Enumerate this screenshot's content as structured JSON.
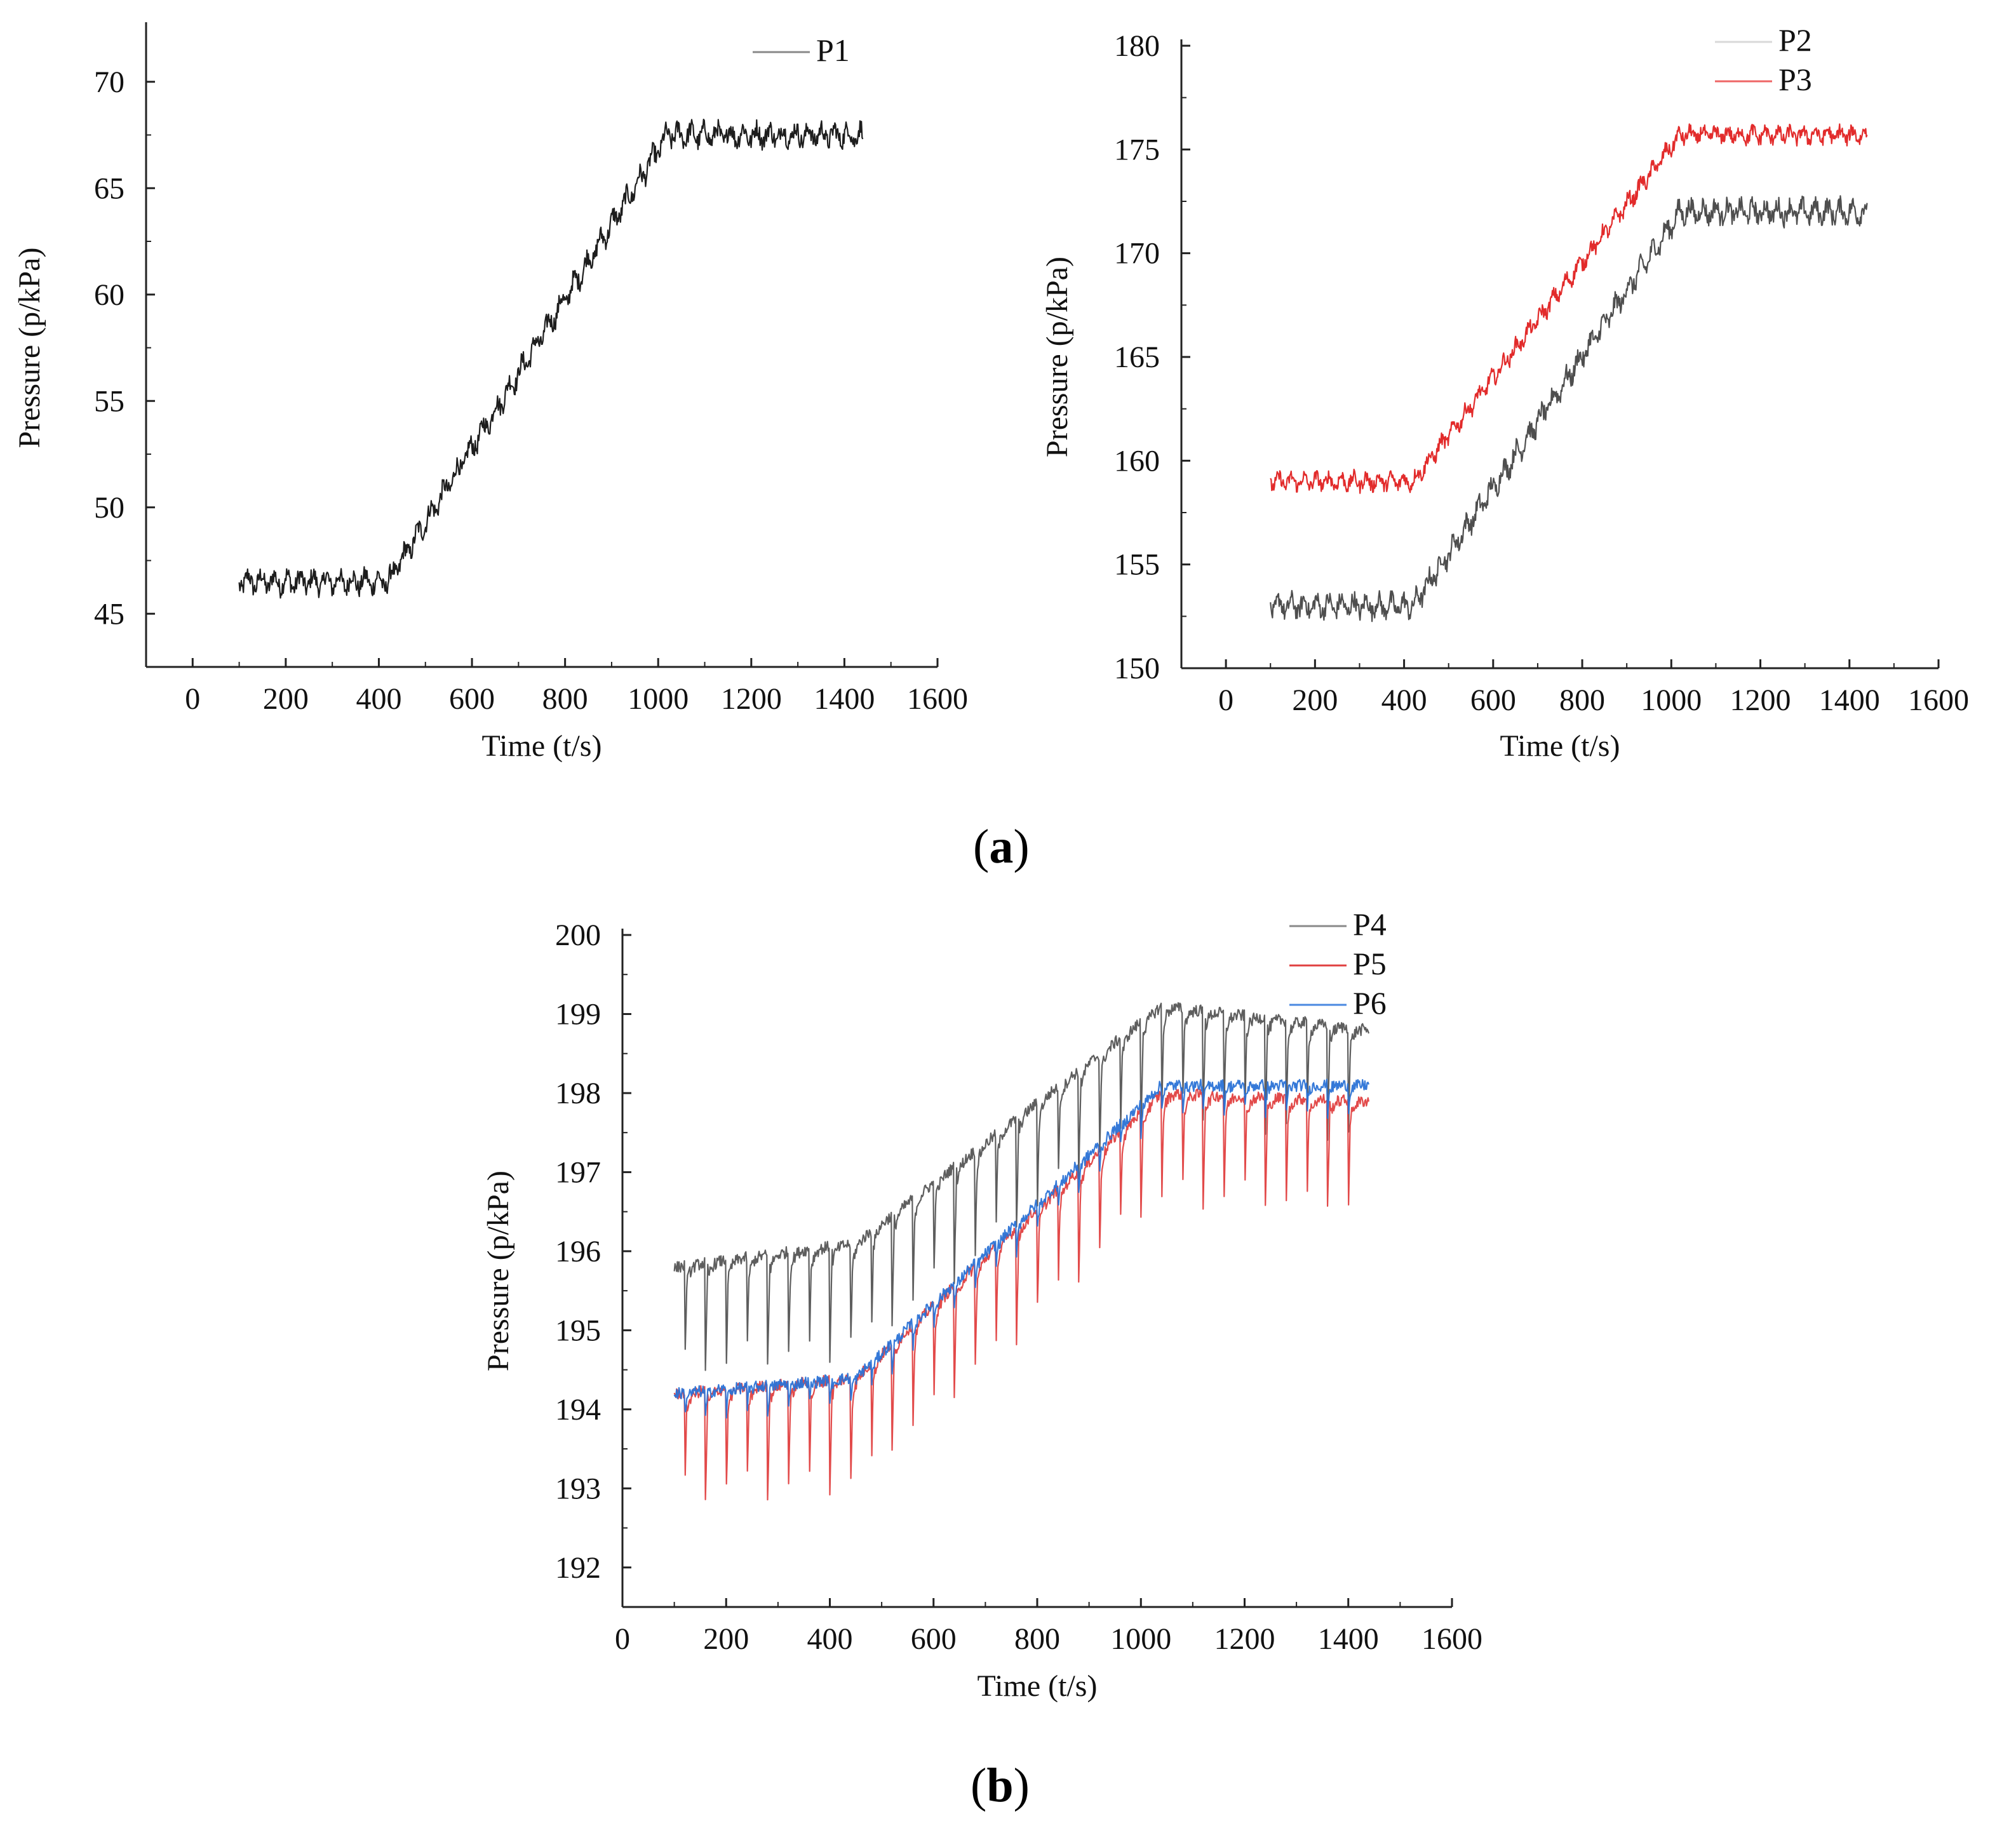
{
  "figure": {
    "panel_a_label": "a",
    "panel_b_label": "b"
  },
  "chart_data": [
    {
      "id": "chart-a-left",
      "type": "line",
      "xlabel": "Time (t/s)",
      "ylabel": "Pressure (p/kPa)",
      "xlim": [
        -100,
        1600
      ],
      "ylim": [
        42.5,
        72.5
      ],
      "xticks": [
        0,
        200,
        400,
        600,
        800,
        1000,
        1200,
        1400,
        1600
      ],
      "yticks": [
        45,
        50,
        55,
        60,
        65,
        70
      ],
      "legend_position": "top-right",
      "series": [
        {
          "name": "P1",
          "color": "#111111",
          "legend_color": "#888888",
          "x": [
            100,
            420,
            1020,
            1440
          ],
          "y": [
            46.5,
            46.5,
            67.5,
            67.5
          ],
          "noise": 0.6,
          "period": 28
        }
      ]
    },
    {
      "id": "chart-a-right",
      "type": "line",
      "xlabel": "Time (t/s)",
      "ylabel": "Pressure (p/kPa)",
      "xlim": [
        -100,
        1600
      ],
      "ylim": [
        150,
        180
      ],
      "xticks": [
        0,
        200,
        400,
        600,
        800,
        1000,
        1200,
        1400,
        1600
      ],
      "yticks": [
        150,
        155,
        160,
        165,
        170,
        175,
        180
      ],
      "legend_position": "top-right",
      "series": [
        {
          "name": "P2",
          "color": "#444444",
          "legend_color": "#d8d8d8",
          "x": [
            100,
            420,
            1020,
            1440
          ],
          "y": [
            153.0,
            153.0,
            172.0,
            172.0
          ],
          "noise": 0.6,
          "period": 28
        },
        {
          "name": "P3",
          "color": "#e02020",
          "legend_color": "#ee6666",
          "x": [
            100,
            420,
            1020,
            1440
          ],
          "y": [
            159.0,
            159.0,
            175.7,
            175.7
          ],
          "noise": 0.45,
          "period": 28
        }
      ]
    },
    {
      "id": "chart-b",
      "type": "line",
      "xlabel": "Time (t/s)",
      "ylabel": "Pressure (p/kPa)",
      "xlim": [
        0,
        1600
      ],
      "ylim": [
        191.5,
        200
      ],
      "xticks": [
        0,
        200,
        400,
        600,
        800,
        1000,
        1200,
        1400,
        1600
      ],
      "yticks": [
        192,
        193,
        194,
        195,
        196,
        197,
        198,
        199,
        200
      ],
      "legend_position": "top-right",
      "series": [
        {
          "name": "P4",
          "color": "#555555",
          "legend_color": "#888888",
          "x": [
            100,
            450,
            1040,
            1440
          ],
          "y": [
            195.8,
            196.1,
            199.1,
            198.8
          ],
          "dip": 1.4,
          "period": 40
        },
        {
          "name": "P5",
          "color": "#e04040",
          "legend_color": "#e04040",
          "x": [
            100,
            450,
            1040,
            1440
          ],
          "y": [
            194.2,
            194.4,
            198.0,
            197.9
          ],
          "dip": 1.4,
          "period": 40
        },
        {
          "name": "P6",
          "color": "#2a72d6",
          "legend_color": "#4a88e0",
          "x": [
            100,
            450,
            1040,
            1440
          ],
          "y": [
            194.2,
            194.4,
            198.1,
            198.1
          ],
          "dip": 0.35,
          "period": 40
        }
      ]
    }
  ]
}
